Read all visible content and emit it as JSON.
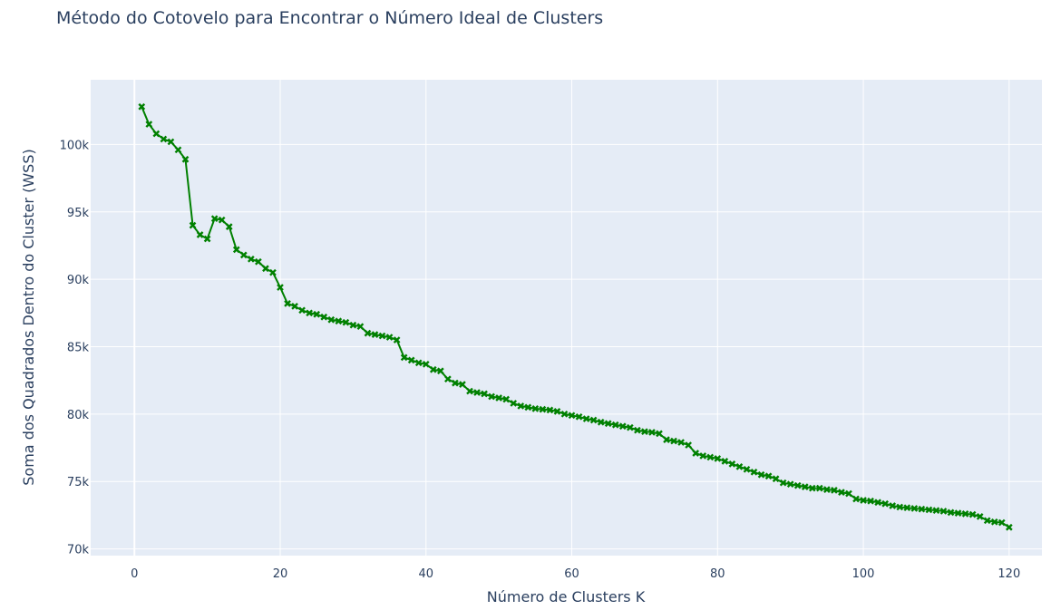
{
  "chart_data": {
    "type": "line",
    "title": "Método do Cotovelo para Encontrar o Número Ideal de Clusters",
    "xlabel": "Número de Clusters K",
    "ylabel": "Soma dos Quadrados Dentro do Cluster (WSS)",
    "xlim": [
      -6,
      124.5
    ],
    "ylim": [
      69500,
      104800
    ],
    "x_ticks": [
      0,
      20,
      40,
      60,
      80,
      100,
      120
    ],
    "x_tick_labels": [
      "0",
      "20",
      "40",
      "60",
      "80",
      "100",
      "120"
    ],
    "y_ticks": [
      70000,
      75000,
      80000,
      85000,
      90000,
      95000,
      100000
    ],
    "y_tick_labels": [
      "70k",
      "75k",
      "80k",
      "85k",
      "90k",
      "95k",
      "100k"
    ],
    "grid": true,
    "marker": "x",
    "line_color": "#008000",
    "plot_bg": "#e5ecf6",
    "x": [
      1,
      2,
      3,
      4,
      5,
      6,
      7,
      8,
      9,
      10,
      11,
      12,
      13,
      14,
      15,
      16,
      17,
      18,
      19,
      20,
      21,
      22,
      23,
      24,
      25,
      26,
      27,
      28,
      29,
      30,
      31,
      32,
      33,
      34,
      35,
      36,
      37,
      38,
      39,
      40,
      41,
      42,
      43,
      44,
      45,
      46,
      47,
      48,
      49,
      50,
      51,
      52,
      53,
      54,
      55,
      56,
      57,
      58,
      59,
      60,
      61,
      62,
      63,
      64,
      65,
      66,
      67,
      68,
      69,
      70,
      71,
      72,
      73,
      74,
      75,
      76,
      77,
      78,
      79,
      80,
      81,
      82,
      83,
      84,
      85,
      86,
      87,
      88,
      89,
      90,
      91,
      92,
      93,
      94,
      95,
      96,
      97,
      98,
      99,
      100,
      101,
      102,
      103,
      104,
      105,
      106,
      107,
      108,
      109,
      110,
      111,
      112,
      113,
      114,
      115,
      116,
      117,
      118,
      119,
      120
    ],
    "series": [
      {
        "values": [
          102800,
          101500,
          100800,
          100400,
          100200,
          99600,
          98900,
          94000,
          93300,
          93000,
          94500,
          94400,
          93900,
          92200,
          91800,
          91500,
          91300,
          90800,
          90500,
          89400,
          88200,
          88000,
          87700,
          87500,
          87400,
          87200,
          87000,
          86900,
          86800,
          86600,
          86500,
          86000,
          85900,
          85800,
          85700,
          85500,
          84200,
          84000,
          83800,
          83700,
          83300,
          83200,
          82600,
          82300,
          82200,
          81700,
          81600,
          81500,
          81300,
          81200,
          81100,
          80800,
          80600,
          80500,
          80400,
          80350,
          80300,
          80200,
          80000,
          79900,
          79800,
          79650,
          79550,
          79400,
          79300,
          79200,
          79100,
          79000,
          78800,
          78700,
          78650,
          78550,
          78100,
          78000,
          77900,
          77700,
          77100,
          76900,
          76800,
          76700,
          76500,
          76300,
          76100,
          75900,
          75700,
          75500,
          75400,
          75200,
          74900,
          74800,
          74700,
          74600,
          74500,
          74500,
          74400,
          74350,
          74200,
          74100,
          73700,
          73600,
          73550,
          73450,
          73350,
          73200,
          73100,
          73050,
          73000,
          72950,
          72900,
          72850,
          72800,
          72700,
          72650,
          72600,
          72550,
          72400,
          72100,
          72000,
          71950,
          71600
        ]
      }
    ]
  }
}
